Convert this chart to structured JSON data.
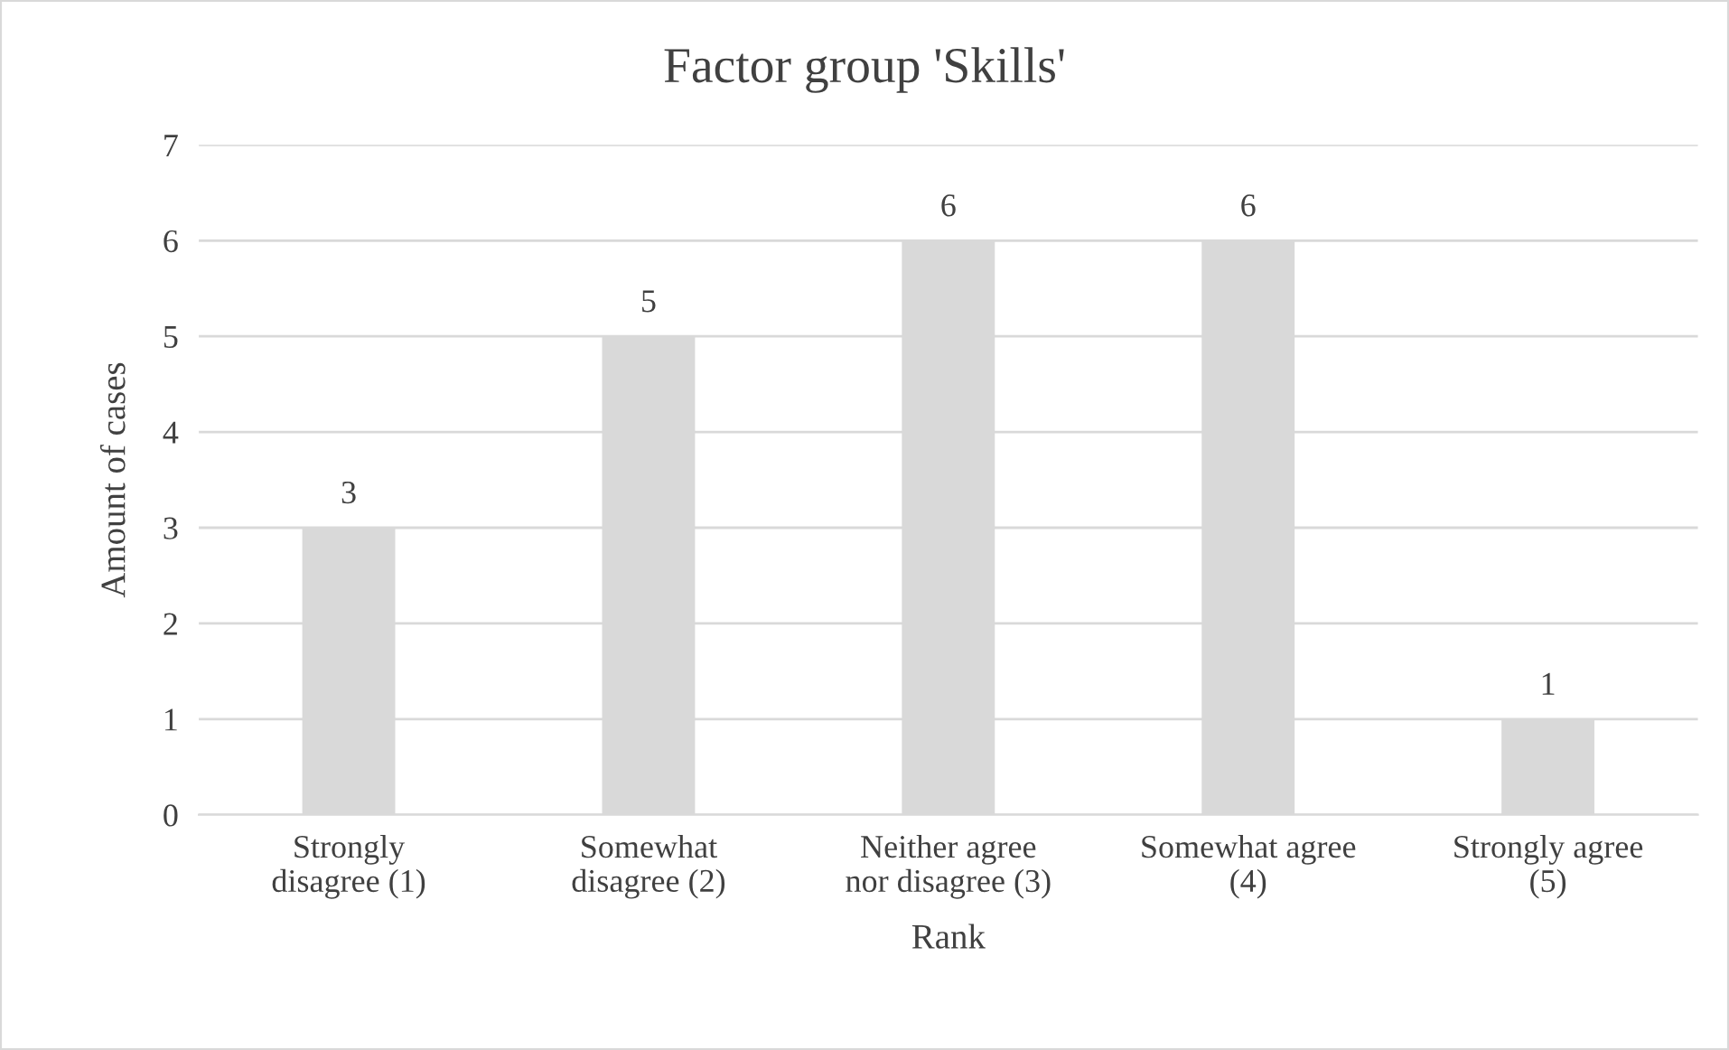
{
  "chart_data": {
    "type": "bar",
    "title": "Factor group 'Skills'",
    "xlabel": "Rank",
    "ylabel": "Amount of cases",
    "categories": [
      "Strongly\ndisagree (1)",
      "Somewhat\ndisagree (2)",
      "Neither agree\nnor disagree (3)",
      "Somewhat agree\n(4)",
      "Strongly agree\n(5)"
    ],
    "values": [
      3,
      5,
      6,
      6,
      1
    ],
    "color": "#d9d9d9",
    "ylim": [
      0,
      7
    ],
    "yticks": [
      0,
      1,
      2,
      3,
      4,
      5,
      6,
      7
    ],
    "grid": "y",
    "data_labels": true,
    "legend": false
  }
}
